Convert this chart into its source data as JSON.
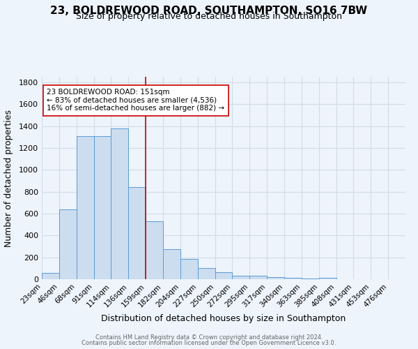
{
  "title": "23, BOLDREWOOD ROAD, SOUTHAMPTON, SO16 7BW",
  "subtitle": "Size of property relative to detached houses in Southampton",
  "xlabel": "Distribution of detached houses by size in Southampton",
  "ylabel": "Number of detached properties",
  "bin_labels": [
    "23sqm",
    "46sqm",
    "68sqm",
    "91sqm",
    "114sqm",
    "136sqm",
    "159sqm",
    "182sqm",
    "204sqm",
    "227sqm",
    "250sqm",
    "272sqm",
    "295sqm",
    "317sqm",
    "340sqm",
    "363sqm",
    "385sqm",
    "408sqm",
    "431sqm",
    "453sqm",
    "476sqm"
  ],
  "values": [
    55,
    640,
    1305,
    1310,
    1375,
    845,
    530,
    275,
    185,
    105,
    65,
    35,
    35,
    20,
    10,
    5,
    10,
    0,
    0,
    0,
    0
  ],
  "bar_color": "#ccddf0",
  "bar_edge_color": "#5b9bd5",
  "grid_color": "#d0dce8",
  "bg_color": "#eef4fb",
  "vline_color": "#cc0000",
  "vline_bin": 6,
  "annotation_text": "23 BOLDREWOOD ROAD: 151sqm\n← 83% of detached houses are smaller (4,536)\n16% of semi-detached houses are larger (882) →",
  "annotation_box_color": "#ffffff",
  "annotation_box_edge": "#cc0000",
  "footer_line1": "Contains HM Land Registry data © Crown copyright and database right 2024.",
  "footer_line2": "Contains public sector information licensed under the Open Government Licence v3.0.",
  "ylim": [
    0,
    1850
  ],
  "yticks": [
    0,
    200,
    400,
    600,
    800,
    1000,
    1200,
    1400,
    1600,
    1800
  ],
  "title_fontsize": 11,
  "subtitle_fontsize": 9
}
